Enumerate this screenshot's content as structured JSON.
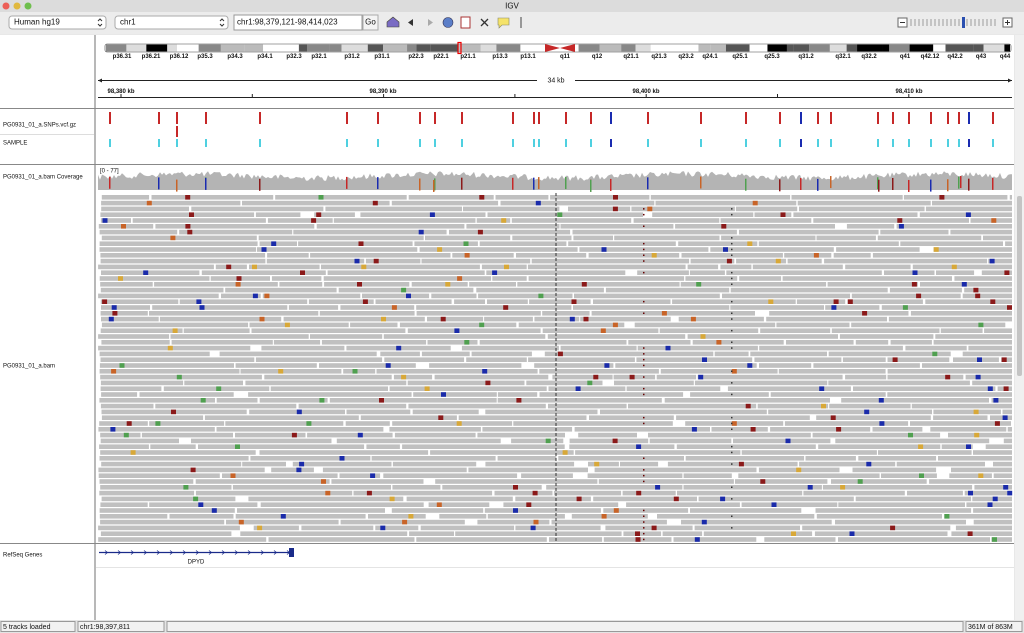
{
  "window": {
    "title": "IGV"
  },
  "toolbar": {
    "genome": "Human hg19",
    "chromosome": "chr1",
    "locus": "chr1:98,379,121-98,414,023",
    "go": "Go"
  },
  "ideogram": {
    "bands": [
      "p36.31",
      "p36.21",
      "p36.12",
      "p35.3",
      "p34.3",
      "p34.1",
      "p32.3",
      "p32.1",
      "p31.2",
      "p31.1",
      "p22.3",
      "p22.1",
      "p21.1",
      "p13.3",
      "p13.1",
      "q11",
      "q12",
      "q21.1",
      "q21.3",
      "q23.2",
      "q24.1",
      "q25.1",
      "q25.3",
      "q31.2",
      "q32.1",
      "q32.2",
      "q41",
      "q42.12",
      "q42.2",
      "q43",
      "q44"
    ]
  },
  "ruler": {
    "span": "34 kb",
    "ticks": [
      "98,380 kb",
      "98,390 kb",
      "98,400 kb",
      "98,410 kb"
    ]
  },
  "tracks": [
    {
      "name": "PG0931_01_a.SNPs.vcf.gz"
    },
    {
      "name": "SAMPLE"
    },
    {
      "name": "PG0931_01_a.bam Coverage",
      "range": "[0 - 77]"
    },
    {
      "name": "PG0931_01_a.bam"
    },
    {
      "name": "RefSeq Genes",
      "feature": "DPYD"
    }
  ],
  "status": {
    "tracks": "5 tracks loaded",
    "position": "chr1:98,397,811",
    "memory": "361M of 863M"
  }
}
